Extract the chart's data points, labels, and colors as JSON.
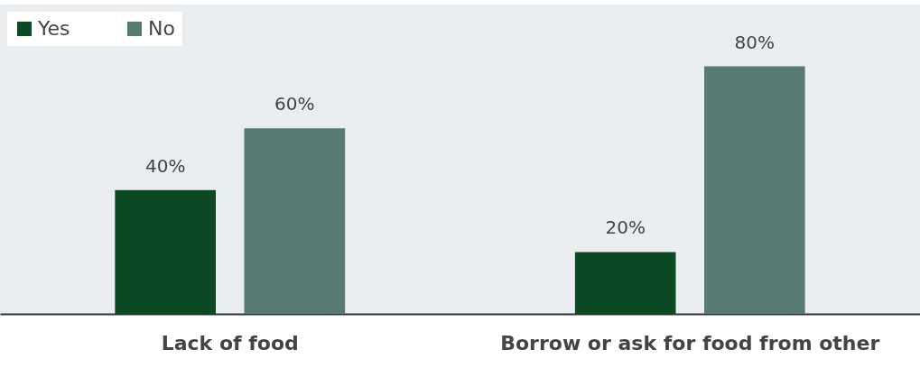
{
  "chart_data": {
    "type": "bar",
    "categories": [
      "Lack of food",
      "Borrow or ask for food from other"
    ],
    "series": [
      {
        "name": "Yes",
        "color": "#0b4a23",
        "values": [
          40,
          20
        ],
        "value_labels": [
          "40%",
          "20%"
        ]
      },
      {
        "name": "No",
        "color": "#587a72",
        "values": [
          60,
          80
        ],
        "value_labels": [
          "60%",
          "80%"
        ]
      }
    ],
    "ylim": [
      0,
      100
    ],
    "legend": "top left"
  }
}
